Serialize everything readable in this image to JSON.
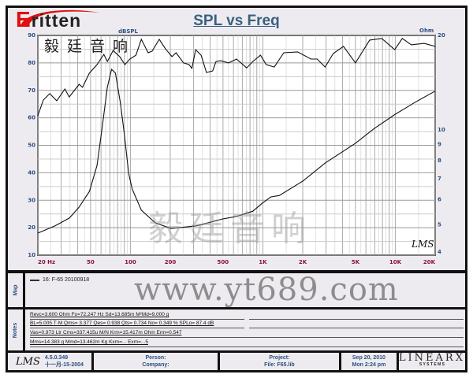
{
  "logo": {
    "brand": "ritten",
    "brand_initial": "E",
    "chinese": "毅廷音响"
  },
  "watermarks": {
    "chinese": "毅廷音响",
    "url": "www.yt689.com"
  },
  "chart_data": {
    "type": "line",
    "title": "SPL vs Freq",
    "x_scale": "log",
    "xlim": [
      20,
      20000
    ],
    "x_tick_labels": [
      "20  Hz",
      "50",
      "100",
      "200",
      "500",
      "1K",
      "2K",
      "5K",
      "10K",
      "20K"
    ],
    "x_tick_values": [
      20,
      50,
      100,
      200,
      500,
      1000,
      2000,
      5000,
      10000,
      20000
    ],
    "left_axis": {
      "label": "dBSPL",
      "ylim": [
        10,
        90
      ],
      "ticks": [
        10,
        20,
        30,
        40,
        50,
        60,
        70,
        80,
        90
      ]
    },
    "right_axis": {
      "label": "Ohm",
      "scale": "log",
      "ylim": [
        4,
        20
      ],
      "ticks": [
        4,
        5,
        6,
        7,
        8,
        9,
        10,
        20
      ]
    },
    "grid": true,
    "series": [
      {
        "axis": "left",
        "x": [
          20,
          22,
          24.6,
          27.8,
          32,
          34.5,
          41,
          43.5,
          48.9,
          56,
          63,
          67,
          74,
          83,
          91,
          99,
          110,
          121,
          136,
          146,
          165,
          184,
          206,
          221,
          252,
          277,
          291,
          311,
          342,
          375,
          418,
          443,
          480,
          550,
          633,
          755,
          840,
          960,
          1060,
          1220,
          1440,
          1830,
          2310,
          2570,
          2950,
          3400,
          4060,
          5000,
          6400,
          7900,
          9900,
          11300,
          13200,
          16500,
          20000
        ],
        "y": [
          60.8,
          66.5,
          68.8,
          66.2,
          70.5,
          67.6,
          72.2,
          71.1,
          76.2,
          79.4,
          83.1,
          80.5,
          84.5,
          82.3,
          79.4,
          81.4,
          82.8,
          88.6,
          83.7,
          84.3,
          88.6,
          85.1,
          82.3,
          83.7,
          80,
          79.4,
          78,
          84.8,
          82.8,
          76.5,
          77.1,
          80.5,
          80.8,
          80,
          81.4,
          78.2,
          80.5,
          82.8,
          79.4,
          78.5,
          83.7,
          84,
          81.4,
          81.4,
          78.5,
          83.4,
          86,
          80,
          88.3,
          88.9,
          84.8,
          88.9,
          86.6,
          87.1,
          86
        ]
      },
      {
        "axis": "right",
        "x": [
          20,
          27,
          34.6,
          41,
          49,
          56,
          61,
          67,
          72,
          77,
          84,
          90,
          97,
          103,
          121,
          154,
          203,
          318,
          500,
          633,
          840,
          990,
          1150,
          1330,
          2000,
          2950,
          5000,
          6900,
          9900,
          14300,
          20000
        ],
        "y": [
          4.7,
          4.96,
          5.25,
          5.69,
          6.38,
          7.72,
          10.1,
          13.7,
          15.6,
          15.2,
          12.2,
          9.72,
          7.29,
          6.5,
          5.56,
          5.07,
          4.86,
          4.96,
          5.22,
          5.31,
          5.52,
          5.85,
          6.13,
          6.19,
          6.88,
          7.85,
          9.08,
          10.1,
          11.2,
          12.3,
          13.3
        ]
      }
    ]
  },
  "chart_mark": "LMS",
  "map": {
    "label": "Map",
    "legend": "16: F-65  20100918"
  },
  "notes": {
    "label": "Notes",
    "lines": [
      "Revc=3.600 Ohm  Fo=72.247 Hz  Sd=13.685m M²Md=9.000 g",
      "BL=5.005 T·M  Qms= 3.377  Qes= 0.938  Qts= 0.734  No= 0.349 %  SPLo= 87.4 dB",
      "Vas=0.973 Ltr  Cms=337.415u M/N  Krm=15.417m Ohm  Erm=0.547",
      "Mms=14.383 g  Mmd=13.462m Kg  Kxm=...  Exm=...5"
    ]
  },
  "footer": {
    "lms": "LMS",
    "version": "4.5.0.349",
    "build_date": "十一月-15-2004",
    "person": "Person:",
    "company": "Company:",
    "project": "Project:",
    "file": "File: F65.lib",
    "date": "Sep 20, 2010",
    "time": "Mon  2:24 pm",
    "vendor": "LINEARX",
    "vendor_sub": "S Y S T E M S"
  }
}
